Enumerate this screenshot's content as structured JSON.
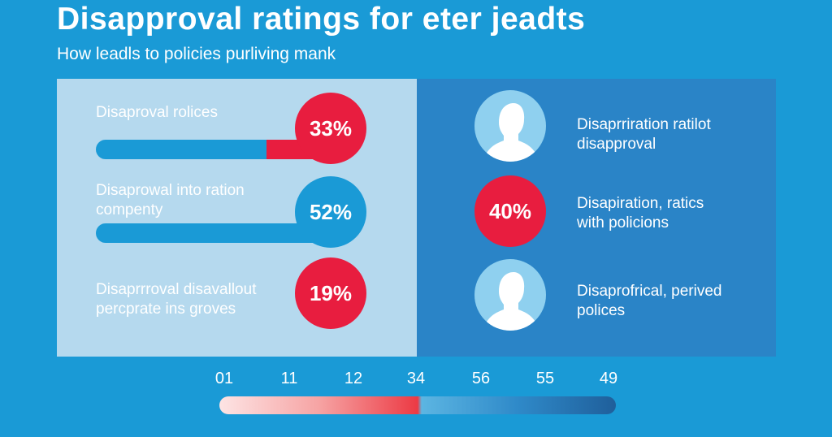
{
  "header": {
    "title": "Disapproval ratings for  eter jeadts",
    "subtitle": "How leadls to policies purliving mank"
  },
  "left_panel": {
    "rows": [
      {
        "label_line1": "Disaproval rolices",
        "label_line2": "",
        "percent": "33%",
        "badge_color": "red"
      },
      {
        "label_line1": "Disaprowal into ration",
        "label_line2": "compenty",
        "percent": "52%",
        "badge_color": "blue"
      },
      {
        "label_line1": "Disaprrroval disavallout",
        "label_line2": "percprate ins groves",
        "percent": "19%",
        "badge_color": "red"
      }
    ]
  },
  "right_panel": {
    "rows": [
      {
        "icon": "person-icon",
        "label_line1": "Disaprriration ratilot",
        "label_line2": "disapproval"
      },
      {
        "percent": "40%",
        "label_line1": "Disapiration, ratics",
        "label_line2": "with policions"
      },
      {
        "icon": "person-icon",
        "label_line1": "Disaprofrical, perived",
        "label_line2": "polices"
      }
    ]
  },
  "scale": {
    "ticks": [
      "01",
      "11",
      "12",
      "34",
      "56",
      "55",
      "49"
    ]
  },
  "colors": {
    "background": "#1a9ad6",
    "accent_red": "#e81d3f",
    "panel_light": "#b5d9ee",
    "panel_dark": "#2a84c7"
  }
}
